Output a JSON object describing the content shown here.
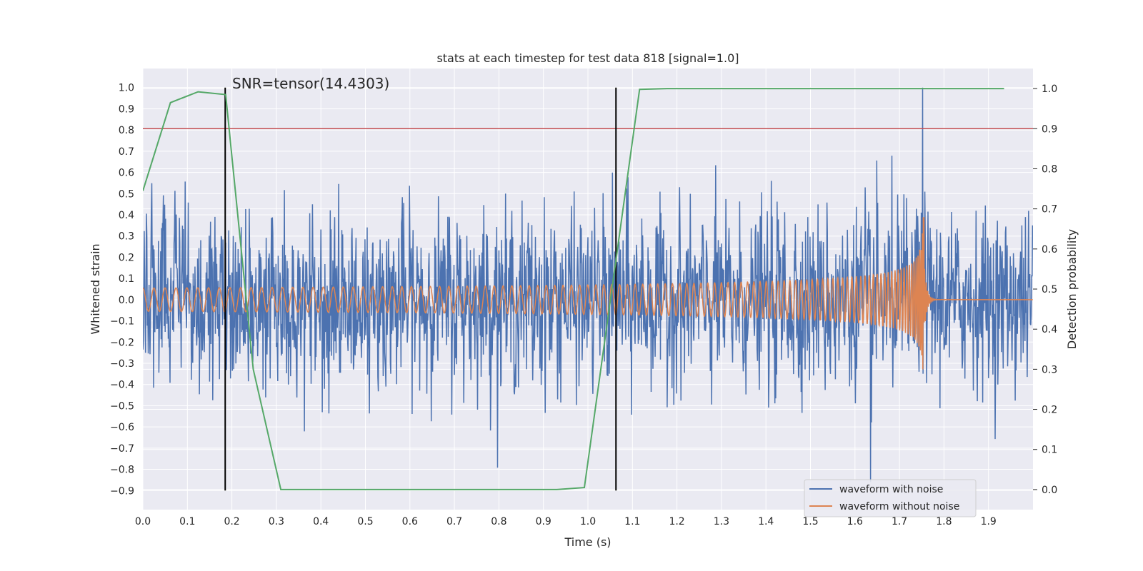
{
  "chart_data": {
    "type": "line",
    "title": "stats at each timestep for test data 818 [signal=1.0]",
    "xlabel": "Time (s)",
    "ylabel": "Whitened strain",
    "y2label": "Detection probability",
    "annotation": "SNR=tensor(14.4303)",
    "xlim": [
      0.0,
      2.0
    ],
    "ylim": [
      -0.99,
      1.09
    ],
    "y2lim": [
      -0.05,
      1.05
    ],
    "xticks": [
      0.0,
      0.1,
      0.2,
      0.3,
      0.4,
      0.5,
      0.6,
      0.7,
      0.8,
      0.9,
      1.0,
      1.1,
      1.2,
      1.3,
      1.4,
      1.5,
      1.6,
      1.7,
      1.8,
      1.9
    ],
    "xtick_labels": [
      "0.0",
      "0.1",
      "0.2",
      "0.3",
      "0.4",
      "0.5",
      "0.6",
      "0.7",
      "0.8",
      "0.9",
      "1.0",
      "1.1",
      "1.2",
      "1.3",
      "1.4",
      "1.5",
      "1.6",
      "1.7",
      "1.8",
      "1.9"
    ],
    "yticks": [
      1.0,
      0.9,
      0.8,
      0.7,
      0.6,
      0.5,
      0.4,
      0.3,
      0.2,
      0.1,
      0.0,
      -0.1,
      -0.2,
      -0.3,
      -0.4,
      -0.5,
      -0.6,
      -0.7,
      -0.8,
      -0.9
    ],
    "ytick_labels": [
      "1.0",
      "0.9",
      "0.8",
      "0.7",
      "0.6",
      "0.5",
      "0.4",
      "0.3",
      "0.2",
      "0.1",
      "0.0",
      "−0.1",
      "−0.2",
      "−0.3",
      "−0.4",
      "−0.5",
      "−0.6",
      "−0.7",
      "−0.8",
      "−0.9"
    ],
    "y2ticks": [
      1.0,
      0.9,
      0.8,
      0.7,
      0.6,
      0.5,
      0.4,
      0.3,
      0.2,
      0.1,
      0.0
    ],
    "y2tick_labels": [
      "1.0",
      "0.9",
      "0.8",
      "0.7",
      "0.6",
      "0.5",
      "0.4",
      "0.3",
      "0.2",
      "0.1",
      "0.0"
    ],
    "threshold": {
      "axis": "y2",
      "value": 0.9,
      "color": "#c44e52"
    },
    "vlines": [
      {
        "x": 0.185,
        "ymin": -0.9,
        "ymax": 1.0
      },
      {
        "x": 1.063,
        "ymin": -0.9,
        "ymax": 1.0
      }
    ],
    "series": [
      {
        "name": "waveform with noise",
        "axis": "y",
        "kind": "noise",
        "color": "#4c72b0",
        "amplitude_typical": 0.3,
        "peak": {
          "x": 1.752,
          "y": 1.0
        },
        "min": {
          "x": 1.635,
          "y": -0.86
        }
      },
      {
        "name": "waveform without noise",
        "axis": "y",
        "kind": "chirp",
        "color": "#dd8452",
        "t_merger": 1.755,
        "amplitude_start": 0.055,
        "amplitude_peak": 0.4,
        "freq_start_hz": 40
      },
      {
        "name": "detection probability",
        "axis": "y2",
        "kind": "line",
        "color": "#55a868",
        "x": [
          0.0,
          0.062,
          0.124,
          0.186,
          0.248,
          0.31,
          0.372,
          0.434,
          0.496,
          0.558,
          0.62,
          0.682,
          0.744,
          0.806,
          0.868,
          0.93,
          0.992,
          1.054,
          1.116,
          1.178,
          1.24,
          1.302,
          1.364,
          1.426,
          1.488,
          1.55,
          1.612,
          1.674,
          1.736,
          1.798,
          1.86,
          1.935
        ],
        "y": [
          0.745,
          0.965,
          0.992,
          0.985,
          0.3,
          0.0,
          0.0,
          0.0,
          0.0,
          0.0,
          0.0,
          0.0,
          0.0,
          0.0,
          0.0,
          0.0,
          0.005,
          0.5,
          0.998,
          1.0,
          1.0,
          1.0,
          1.0,
          1.0,
          1.0,
          1.0,
          1.0,
          1.0,
          1.0,
          1.0,
          1.0,
          1.0
        ]
      }
    ],
    "legend": {
      "placement": "lower-right",
      "entries": [
        {
          "label": "waveform with noise",
          "color": "#4c72b0"
        },
        {
          "label": "waveform without noise",
          "color": "#dd8452"
        }
      ]
    }
  }
}
